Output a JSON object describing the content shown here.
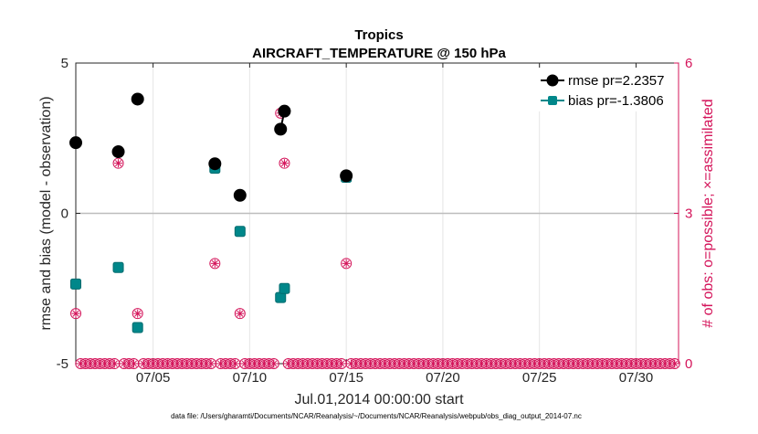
{
  "chart_data": {
    "type": "scatter",
    "title": "Tropics",
    "subtitle": "AIRCRAFT_TEMPERATURE @ 150 hPa",
    "xlabel": "Jul.01,2014 00:00:00 start",
    "ylabel": "rmse and bias (model - observation)",
    "ylabel_right": "# of obs: o=possible; ×=assimilated",
    "xlim": [
      1,
      32.2
    ],
    "ylim": [
      -5,
      5
    ],
    "ylim_right": [
      0,
      6
    ],
    "x_ticks": [
      5,
      10,
      15,
      20,
      25,
      30
    ],
    "x_tick_labels": [
      "07/05",
      "07/10",
      "07/15",
      "07/20",
      "07/25",
      "07/30"
    ],
    "y_ticks": [
      -5,
      0,
      5
    ],
    "y_tick_labels": [
      "-5",
      "0",
      "5"
    ],
    "y_ticks_right": [
      0,
      3,
      6
    ],
    "y_tick_labels_right": [
      "0",
      "3",
      "6"
    ],
    "grid": true,
    "legend_position": "top-right",
    "series": [
      {
        "name": "rmse pr=2.2357",
        "color": "#000000",
        "marker": "circle",
        "points": [
          [
            1.0,
            2.35
          ],
          [
            3.2,
            2.05
          ],
          [
            4.2,
            3.8
          ],
          [
            8.2,
            1.65
          ],
          [
            9.5,
            0.6
          ],
          [
            11.6,
            2.8
          ],
          [
            11.8,
            3.4
          ],
          [
            15.0,
            1.25
          ]
        ],
        "line_segments": [
          [
            11.6,
            11.8
          ]
        ]
      },
      {
        "name": "bias pr=-1.3806",
        "color": "#00878a",
        "marker": "square",
        "points": [
          [
            1.0,
            -2.35
          ],
          [
            3.2,
            -1.8
          ],
          [
            4.2,
            -3.8
          ],
          [
            8.2,
            1.5
          ],
          [
            9.5,
            -0.6
          ],
          [
            11.6,
            -2.8
          ],
          [
            11.8,
            -2.5
          ],
          [
            15.0,
            1.2
          ]
        ],
        "line_segments": [
          [
            11.6,
            11.8
          ]
        ]
      },
      {
        "name": "# of obs",
        "color": "#d4145a",
        "axis": "right",
        "marker": "circle-asterisk",
        "points": [
          [
            1.0,
            1
          ],
          [
            3.2,
            4
          ],
          [
            4.2,
            1
          ],
          [
            8.2,
            2
          ],
          [
            9.5,
            1
          ],
          [
            11.6,
            5
          ],
          [
            11.8,
            4
          ],
          [
            15.0,
            2
          ]
        ]
      }
    ],
    "zero_obs_x_start": 1.0,
    "zero_obs_x_end": 32.0,
    "zero_obs_x_step": 0.25,
    "footnote": "data file: /Users/gharamti/Documents/NCAR/Reanalysis/~/Documents/NCAR/Reanalysis/webpub/obs_diag_output_2014-07.nc"
  }
}
